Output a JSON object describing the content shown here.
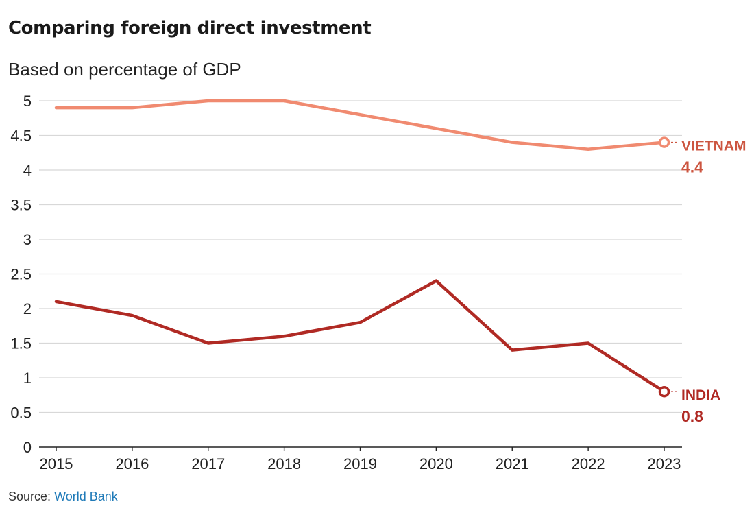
{
  "title": "Comparing foreign direct investment",
  "subtitle": "Based on percentage of GDP",
  "source": {
    "label": "Source:",
    "link_text": "World Bank"
  },
  "colors": {
    "vietnam_line": "#f08a70",
    "vietnam_label": "#cc5540",
    "india_line": "#b02a24",
    "india_label": "#b02a24",
    "grid": "#d8d8d8",
    "axis": "#222222"
  },
  "chart_data": {
    "type": "line",
    "title": "Comparing foreign direct investment",
    "subtitle": "Based on percentage of GDP",
    "xlabel": "",
    "ylabel": "",
    "x": [
      "2015",
      "2016",
      "2017",
      "2018",
      "2019",
      "2020",
      "2021",
      "2022",
      "2023"
    ],
    "ylim": [
      0,
      5
    ],
    "yticks": [
      "0",
      "0.5",
      "1",
      "1.5",
      "2",
      "2.5",
      "3",
      "3.5",
      "4",
      "4.5",
      "5"
    ],
    "grid": "horizontal",
    "legend": "direct labels at line ends",
    "series": [
      {
        "name": "VIETNAM",
        "end_label": "4.4",
        "values": [
          4.9,
          4.9,
          5.0,
          5.0,
          4.8,
          4.6,
          4.4,
          4.3,
          4.4
        ]
      },
      {
        "name": "INDIA",
        "end_label": "0.8",
        "values": [
          2.1,
          1.9,
          1.5,
          1.6,
          1.8,
          2.4,
          1.4,
          1.5,
          0.8
        ]
      }
    ]
  }
}
